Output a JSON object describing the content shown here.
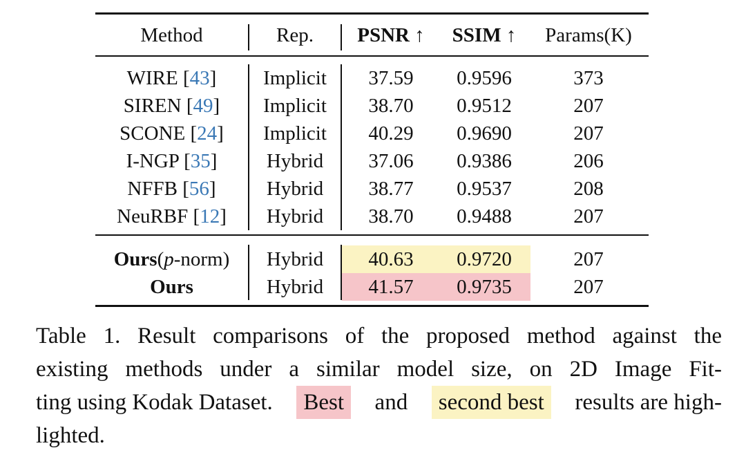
{
  "table": {
    "headers": {
      "method": "Method",
      "rep": "Rep.",
      "psnr": "PSNR ↑",
      "ssim": "SSIM ↑",
      "params": "Params(K)"
    },
    "rows": [
      {
        "method": "WIRE",
        "ref": "43",
        "rep": "Implicit",
        "psnr": "37.59",
        "ssim": "0.9596",
        "params": "373"
      },
      {
        "method": "SIREN",
        "ref": "49",
        "rep": "Implicit",
        "psnr": "38.70",
        "ssim": "0.9512",
        "params": "207"
      },
      {
        "method": "SCONE",
        "ref": "24",
        "rep": "Implicit",
        "psnr": "40.29",
        "ssim": "0.9690",
        "params": "207"
      },
      {
        "method": "I-NGP",
        "ref": "35",
        "rep": "Hybrid",
        "psnr": "37.06",
        "ssim": "0.9386",
        "params": "206"
      },
      {
        "method": "NFFB",
        "ref": "56",
        "rep": "Hybrid",
        "psnr": "38.77",
        "ssim": "0.9537",
        "params": "208"
      },
      {
        "method": "NeuRBF",
        "ref": "12",
        "rep": "Hybrid",
        "psnr": "38.70",
        "ssim": "0.9488",
        "params": "207"
      }
    ],
    "ours_rows": [
      {
        "method_bold": "Ours",
        "method_paren_open": "(",
        "method_italic": "p",
        "method_suffix": "-norm)",
        "rep": "Hybrid",
        "psnr": "40.63",
        "ssim": "0.9720",
        "params": "207",
        "highlight": "second best"
      },
      {
        "method_bold": "Ours",
        "rep": "Hybrid",
        "psnr": "41.57",
        "ssim": "0.9735",
        "params": "207",
        "highlight": "best"
      }
    ],
    "colors": {
      "best": "#f6c5c9",
      "second_best": "#fbf3c3",
      "citation": "#3a78b5"
    }
  },
  "caption": {
    "line1": "Table 1. Result comparisons of the proposed method against the",
    "line2": "existing methods under a similar model size, on 2D Image Fit-",
    "line3_pre": "ting using Kodak Dataset.",
    "best": "Best",
    "and": "and",
    "second_best": "second best",
    "line3_post": "results are high-",
    "line4": "lighted."
  }
}
